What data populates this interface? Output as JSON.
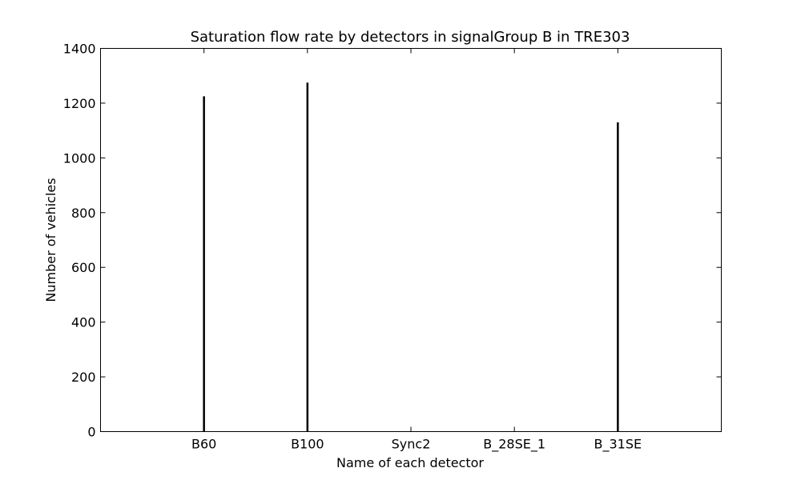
{
  "chart_data": {
    "type": "bar",
    "title": "Saturation flow rate by detectors in signalGroup B in TRE303",
    "xlabel": "Name of each detector",
    "ylabel": "Number of vehicles",
    "categories": [
      "B60",
      "B100",
      "Sync2",
      "B_28SE_1",
      "B_31SE"
    ],
    "values": [
      1225,
      1275,
      0,
      0,
      1130
    ],
    "ylim": [
      0,
      1400
    ],
    "yticks": [
      0,
      200,
      400,
      600,
      800,
      1000,
      1200,
      1400
    ],
    "grid": false,
    "bar_color": "#000000"
  }
}
